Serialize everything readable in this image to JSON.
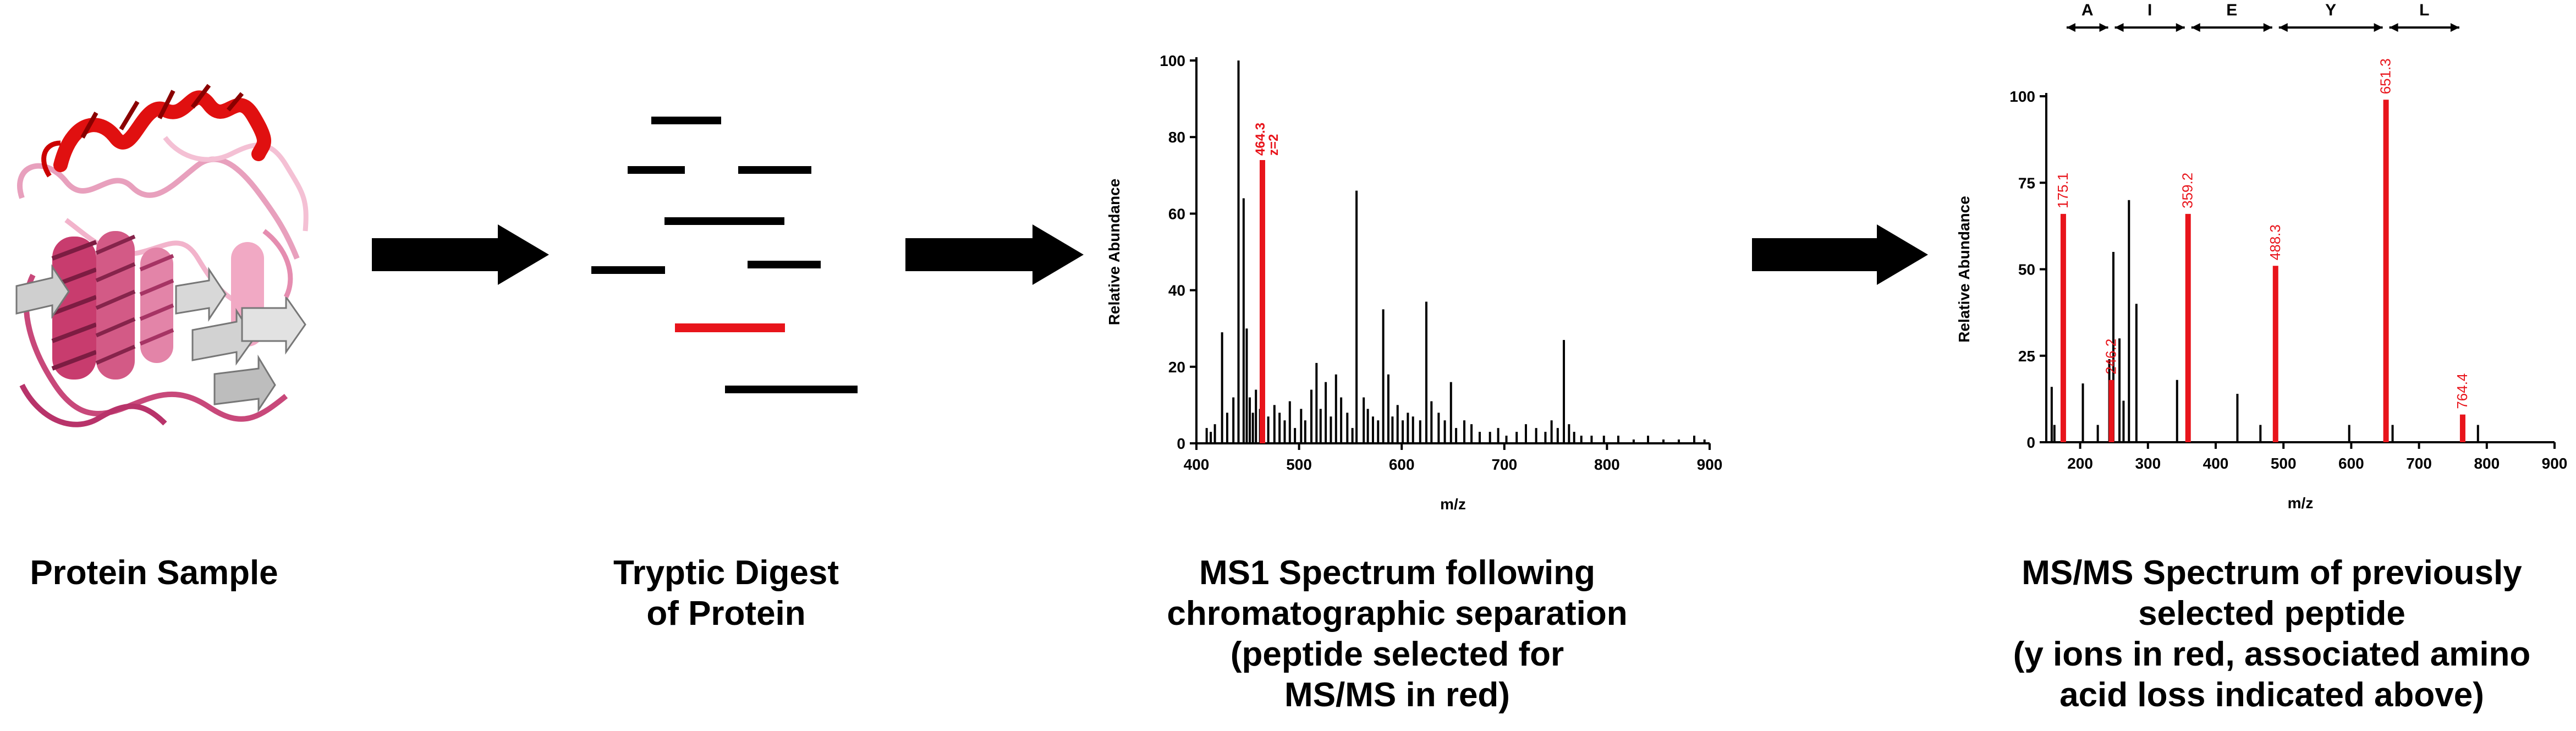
{
  "captions": {
    "protein": [
      "Protein Sample"
    ],
    "digest": [
      "Tryptic Digest",
      "of Protein"
    ],
    "ms1": [
      "MS1 Spectrum following",
      "chromatographic separation",
      "(peptide selected for",
      "MS/MS in red)"
    ],
    "msms": [
      "MS/MS Spectrum of previously",
      "selected peptide",
      "(y ions in red, associated amino",
      "acid loss indicated above)"
    ]
  },
  "colors": {
    "highlight": "#e8141b",
    "ink": "#000000",
    "protein_dark": "#c83c6e",
    "protein_light": "#f4a9c4",
    "protein_red": "#e01010",
    "protein_grey": "#c8c8c8"
  },
  "chart_data": [
    {
      "type": "bar",
      "id": "ms1",
      "xlabel": "m/z",
      "ylabel": "Relative Abundance",
      "xlim": [
        400,
        900
      ],
      "ylim": [
        0,
        100
      ],
      "xticks": [
        "400",
        "500",
        "600",
        "700",
        "800",
        "900"
      ],
      "yticks": [
        "0",
        "20",
        "40",
        "60",
        "80",
        "100"
      ],
      "series": [
        {
          "values_x": [
            410,
            414,
            418,
            425,
            430,
            436,
            441,
            446,
            449,
            452,
            455,
            458,
            462,
            470,
            476,
            481,
            486,
            491,
            496,
            502,
            506,
            512,
            517,
            521,
            526,
            531,
            536,
            541,
            547,
            552,
            556,
            563,
            567,
            572,
            577,
            582,
            587,
            591,
            596,
            601,
            606,
            611,
            618,
            624,
            629,
            636,
            642,
            648,
            653,
            661,
            668,
            676,
            686,
            694,
            702,
            712,
            721,
            731,
            740,
            746,
            752,
            758,
            763,
            768,
            775,
            785,
            797,
            811,
            826,
            840,
            855,
            870,
            885,
            895
          ],
          "values_y": [
            4,
            3,
            5,
            29,
            8,
            12,
            100,
            64,
            30,
            12,
            8,
            14,
            9,
            7,
            10,
            8,
            6,
            11,
            4,
            9,
            6,
            14,
            21,
            9,
            16,
            7,
            18,
            12,
            8,
            4,
            66,
            12,
            9,
            7,
            6,
            35,
            18,
            7,
            10,
            6,
            8,
            7,
            6,
            37,
            11,
            8,
            6,
            16,
            4,
            6,
            5,
            3,
            3,
            4,
            2,
            3,
            5,
            4,
            3,
            6,
            4,
            27,
            5,
            3,
            2,
            2,
            2,
            2,
            1,
            2,
            1,
            1,
            2,
            1
          ]
        },
        {
          "name": "selected",
          "values_x": [
            464.3
          ],
          "values_y": [
            74
          ]
        }
      ],
      "annotations": [
        {
          "x": 464.3,
          "y": 74,
          "text": "464.3",
          "text2": "z=2"
        }
      ]
    },
    {
      "type": "bar",
      "id": "msms",
      "xlabel": "m/z",
      "ylabel": "Relative Abundance",
      "xlim": [
        150,
        900
      ],
      "ylim": [
        0,
        100
      ],
      "xticks": [
        "200",
        "300",
        "400",
        "500",
        "600",
        "700",
        "800",
        "900"
      ],
      "yticks": [
        "0",
        "25",
        "50",
        "75",
        "100"
      ],
      "series": [
        {
          "values_x": [
            158,
            162,
            204,
            226,
            243,
            249,
            258,
            264,
            272,
            283,
            343,
            432,
            466,
            597,
            661,
            787
          ],
          "values_y": [
            16,
            5,
            17,
            5,
            24,
            55,
            30,
            12,
            70,
            40,
            18,
            14,
            5,
            5,
            5,
            5
          ]
        },
        {
          "name": "y ions",
          "values_x": [
            175.1,
            246.2,
            359.2,
            488.3,
            651.3,
            764.4
          ],
          "values_y": [
            66,
            18,
            66,
            51,
            99,
            8
          ]
        }
      ],
      "annotations": [
        {
          "x": 175.1,
          "y": 66,
          "text": "175.1"
        },
        {
          "x": 246.2,
          "y": 18,
          "text": "246.2"
        },
        {
          "x": 359.2,
          "y": 66,
          "text": "359.2"
        },
        {
          "x": 488.3,
          "y": 51,
          "text": "488.3"
        },
        {
          "x": 651.3,
          "y": 99,
          "text": "651.3"
        },
        {
          "x": 764.4,
          "y": 8,
          "text": "764.4"
        }
      ],
      "residues": [
        {
          "from": 175.1,
          "to": 246.2,
          "label": "A"
        },
        {
          "from": 246.2,
          "to": 359.2,
          "label": "I"
        },
        {
          "from": 359.2,
          "to": 488.3,
          "label": "E"
        },
        {
          "from": 488.3,
          "to": 651.3,
          "label": "Y"
        },
        {
          "from": 651.3,
          "to": 764.4,
          "label": "L"
        }
      ]
    }
  ]
}
